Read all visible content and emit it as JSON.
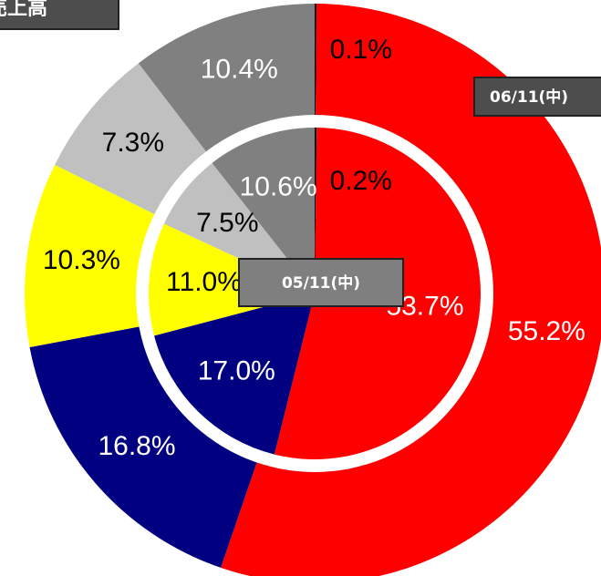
{
  "chart_data": {
    "type": "pie",
    "title": "売上高",
    "categories": [
      "",
      "",
      "",
      "",
      "",
      ""
    ],
    "colors": [
      "#000000",
      "#ff0000",
      "#000080",
      "#ffff00",
      "#c0c0c0",
      "#808080"
    ],
    "label_colors": [
      "#000000",
      "#ffffff",
      "#ffffff",
      "#000000",
      "#000000",
      "#ffffff"
    ],
    "series": [
      {
        "name": "06/11(中)",
        "values": [
          0.1,
          55.2,
          16.8,
          10.3,
          7.3,
          10.4
        ],
        "value_labels": [
          "0.1%",
          "55.2%",
          "16.8%",
          "10.3%",
          "7.3%",
          "10.4%"
        ]
      },
      {
        "name": "05/11(中)",
        "values": [
          0.2,
          53.7,
          17.0,
          11.0,
          7.5,
          10.6
        ],
        "value_labels": [
          "0.2%",
          "53.7%",
          "17.0%",
          "11.0%",
          "7.5%",
          "10.6%"
        ]
      }
    ]
  }
}
